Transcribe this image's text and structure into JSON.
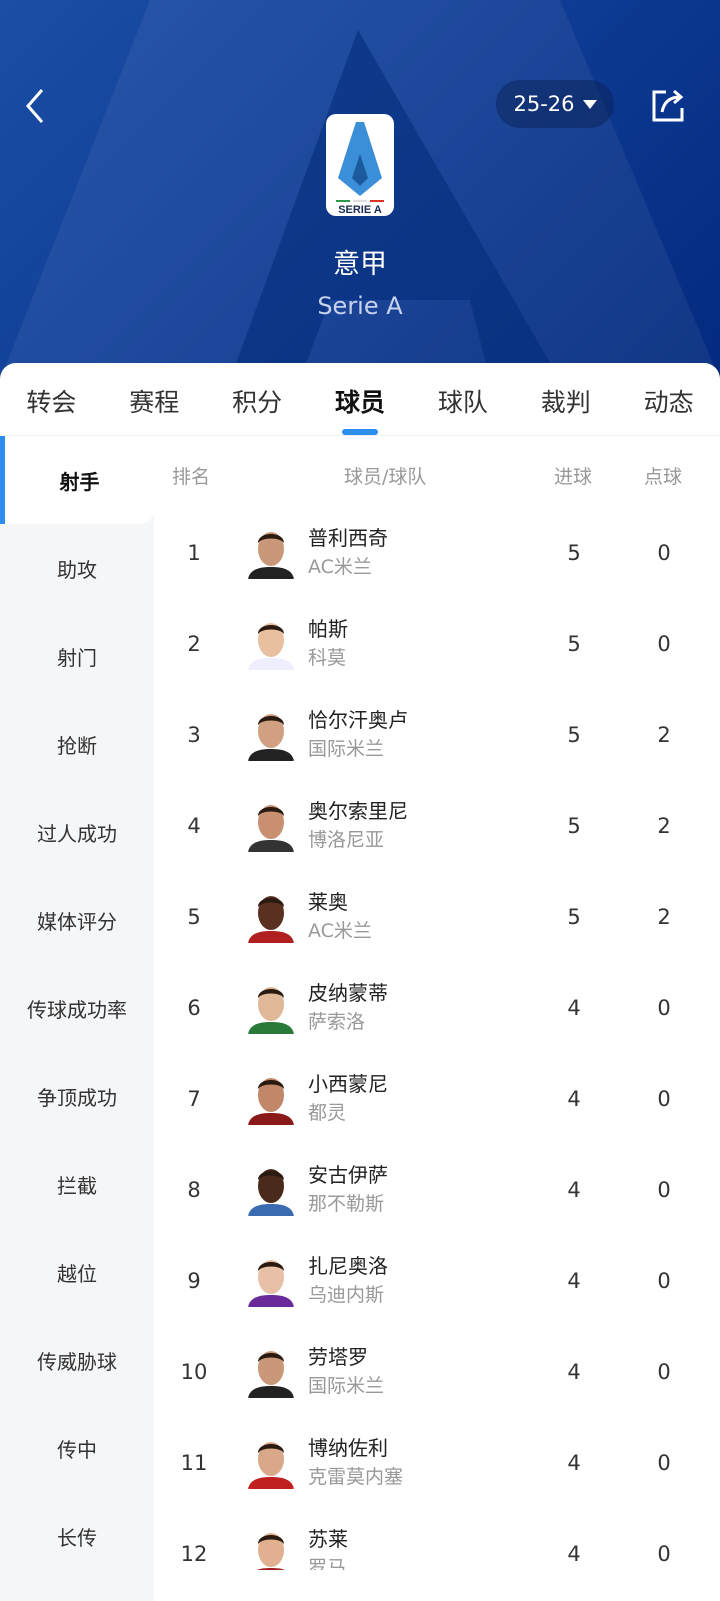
{
  "header": {
    "season": "25-26",
    "title_cn": "意甲",
    "title_en": "Serie A",
    "logo_text": "SERIE A"
  },
  "colors": {
    "accent": "#2e8ef0",
    "header_blue": "#0d3a92"
  },
  "tabs": [
    {
      "label": "转会"
    },
    {
      "label": "赛程"
    },
    {
      "label": "积分"
    },
    {
      "label": "球员",
      "active": true
    },
    {
      "label": "球队"
    },
    {
      "label": "裁判"
    },
    {
      "label": "动态"
    }
  ],
  "sidebar": [
    {
      "label": "射手",
      "active": true
    },
    {
      "label": "助攻"
    },
    {
      "label": "射门"
    },
    {
      "label": "抢断"
    },
    {
      "label": "过人成功"
    },
    {
      "label": "媒体评分"
    },
    {
      "label": "传球成功率"
    },
    {
      "label": "争顶成功"
    },
    {
      "label": "拦截"
    },
    {
      "label": "越位"
    },
    {
      "label": "传威胁球"
    },
    {
      "label": "传中"
    },
    {
      "label": "长传"
    }
  ],
  "table": {
    "columns": {
      "rank": "排名",
      "player": "球员/球队",
      "goals": "进球",
      "penalties": "点球"
    },
    "rows": [
      {
        "rank": "1",
        "name": "普利西奇",
        "team": "AC米兰",
        "goals": "5",
        "penalties": "0"
      },
      {
        "rank": "2",
        "name": "帕斯",
        "team": "科莫",
        "goals": "5",
        "penalties": "0"
      },
      {
        "rank": "3",
        "name": "恰尔汗奥卢",
        "team": "国际米兰",
        "goals": "5",
        "penalties": "2"
      },
      {
        "rank": "4",
        "name": "奥尔索里尼",
        "team": "博洛尼亚",
        "goals": "5",
        "penalties": "2"
      },
      {
        "rank": "5",
        "name": "莱奥",
        "team": "AC米兰",
        "goals": "5",
        "penalties": "2"
      },
      {
        "rank": "6",
        "name": "皮纳蒙蒂",
        "team": "萨索洛",
        "goals": "4",
        "penalties": "0"
      },
      {
        "rank": "7",
        "name": "小西蒙尼",
        "team": "都灵",
        "goals": "4",
        "penalties": "0"
      },
      {
        "rank": "8",
        "name": "安古伊萨",
        "team": "那不勒斯",
        "goals": "4",
        "penalties": "0"
      },
      {
        "rank": "9",
        "name": "扎尼奥洛",
        "team": "乌迪内斯",
        "goals": "4",
        "penalties": "0"
      },
      {
        "rank": "10",
        "name": "劳塔罗",
        "team": "国际米兰",
        "goals": "4",
        "penalties": "0"
      },
      {
        "rank": "11",
        "name": "博纳佐利",
        "team": "克雷莫内塞",
        "goals": "4",
        "penalties": "0"
      },
      {
        "rank": "12",
        "name": "苏莱",
        "team": "罗马",
        "goals": "4",
        "penalties": "0"
      }
    ]
  }
}
